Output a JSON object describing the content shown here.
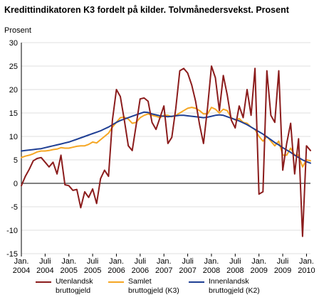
{
  "chart_data": {
    "type": "line",
    "title": "Kredittindikatoren K3 fordelt på kilder. Tolvmånedersvekst. Prosent",
    "ylabel": "Prosent",
    "xlabel": "",
    "ylim": [
      -15,
      30
    ],
    "yticks": [
      30,
      25,
      20,
      15,
      10,
      5,
      0,
      -5,
      -10,
      -15
    ],
    "grid": true,
    "legend_position": "bottom",
    "x_ticks": [
      {
        "line1": "Jan.",
        "line2": "2004"
      },
      {
        "line1": "Juli",
        "line2": "2004"
      },
      {
        "line1": "Jan.",
        "line2": "2005"
      },
      {
        "line1": "Juli",
        "line2": "2005"
      },
      {
        "line1": "Jan.",
        "line2": "2006"
      },
      {
        "line1": "Juli",
        "line2": "2006"
      },
      {
        "line1": "Jan.",
        "line2": "2007"
      },
      {
        "line1": "Juli",
        "line2": "2007"
      },
      {
        "line1": "Jan.",
        "line2": "2008"
      },
      {
        "line1": "Juli",
        "line2": "2008"
      },
      {
        "line1": "Jan.",
        "line2": "2009"
      },
      {
        "line1": "Juli",
        "line2": "2009"
      },
      {
        "line1": "Jan.",
        "line2": "2010"
      }
    ],
    "x": [
      "2004-01",
      "2004-02",
      "2004-03",
      "2004-04",
      "2004-05",
      "2004-06",
      "2004-07",
      "2004-08",
      "2004-09",
      "2004-10",
      "2004-11",
      "2004-12",
      "2005-01",
      "2005-02",
      "2005-03",
      "2005-04",
      "2005-05",
      "2005-06",
      "2005-07",
      "2005-08",
      "2005-09",
      "2005-10",
      "2005-11",
      "2005-12",
      "2006-01",
      "2006-02",
      "2006-03",
      "2006-04",
      "2006-05",
      "2006-06",
      "2006-07",
      "2006-08",
      "2006-09",
      "2006-10",
      "2006-11",
      "2006-12",
      "2007-01",
      "2007-02",
      "2007-03",
      "2007-04",
      "2007-05",
      "2007-06",
      "2007-07",
      "2007-08",
      "2007-09",
      "2007-10",
      "2007-11",
      "2007-12",
      "2008-01",
      "2008-02",
      "2008-03",
      "2008-04",
      "2008-05",
      "2008-06",
      "2008-07",
      "2008-08",
      "2008-09",
      "2008-10",
      "2008-11",
      "2008-12",
      "2009-01",
      "2009-02",
      "2009-03",
      "2009-04",
      "2009-05",
      "2009-06",
      "2009-07",
      "2009-08",
      "2009-09",
      "2009-10",
      "2009-11",
      "2009-12",
      "2010-01",
      "2010-02"
    ],
    "series": [
      {
        "name": "Utenlandsk bruttogjeld",
        "color": "#8b1c1c",
        "values": [
          -0.5,
          1.5,
          3.0,
          4.8,
          5.3,
          5.5,
          4.5,
          3.5,
          4.5,
          2.0,
          6.0,
          -0.3,
          -0.5,
          -1.5,
          -1.3,
          -5.2,
          -1.8,
          -3.0,
          -1.2,
          -4.3,
          1.0,
          2.8,
          1.5,
          13.5,
          20.0,
          18.5,
          13.5,
          8.0,
          7.0,
          12.5,
          18.0,
          18.2,
          17.5,
          13.0,
          11.5,
          14.0,
          16.5,
          8.5,
          9.8,
          16.0,
          24.0,
          24.5,
          23.5,
          21.0,
          17.5,
          12.5,
          8.5,
          16.0,
          25.0,
          22.5,
          15.5,
          23.0,
          18.8,
          13.5,
          11.8,
          16.5,
          14.0,
          20.0,
          14.5,
          24.5,
          -2.3,
          -1.8,
          24.0,
          14.5,
          13.0,
          24.0,
          2.8,
          8.5,
          12.8,
          2.0,
          9.5,
          -11.3,
          8.0,
          7.0
        ]
      },
      {
        "name": "Samlet bruttogjeld (K3)",
        "color": "#f5a623",
        "values": [
          5.5,
          5.8,
          6.0,
          6.3,
          6.7,
          6.9,
          6.9,
          7.0,
          7.2,
          7.3,
          7.6,
          7.5,
          7.5,
          7.7,
          7.9,
          8.0,
          8.0,
          8.3,
          8.8,
          8.6,
          9.3,
          10.0,
          10.7,
          12.0,
          13.0,
          14.0,
          14.1,
          13.7,
          12.8,
          13.0,
          14.0,
          14.5,
          14.8,
          14.5,
          14.3,
          14.0,
          14.5,
          14.5,
          14.2,
          14.5,
          15.0,
          15.5,
          16.0,
          16.2,
          16.0,
          15.5,
          14.8,
          14.8,
          16.2,
          15.8,
          15.0,
          15.8,
          15.5,
          14.0,
          13.5,
          13.8,
          13.0,
          12.8,
          12.0,
          11.5,
          10.0,
          9.0,
          10.0,
          9.0,
          8.0,
          9.0,
          6.0,
          6.0,
          7.5,
          6.0,
          6.0,
          3.5,
          5.0,
          4.8
        ]
      },
      {
        "name": "Innenlandsk bruttogjeld (K2)",
        "color": "#1f3f94",
        "values": [
          6.9,
          7.0,
          7.1,
          7.2,
          7.3,
          7.4,
          7.6,
          7.8,
          8.0,
          8.2,
          8.4,
          8.6,
          8.8,
          9.1,
          9.4,
          9.7,
          10.0,
          10.3,
          10.6,
          10.9,
          11.2,
          11.6,
          12.0,
          12.5,
          13.0,
          13.4,
          13.7,
          14.0,
          14.3,
          14.6,
          14.9,
          15.2,
          15.1,
          14.8,
          14.6,
          14.4,
          14.3,
          14.2,
          14.3,
          14.4,
          14.5,
          14.5,
          14.4,
          14.3,
          14.2,
          14.1,
          14.0,
          14.1,
          14.3,
          14.5,
          14.6,
          14.5,
          14.2,
          13.9,
          13.6,
          13.3,
          12.9,
          12.5,
          12.0,
          11.5,
          11.0,
          10.5,
          9.9,
          9.3,
          8.7,
          8.2,
          7.6,
          7.1,
          6.6,
          6.0,
          5.5,
          5.0,
          4.6,
          4.3
        ]
      }
    ],
    "legend": [
      {
        "line1": "Utenlandsk",
        "line2": "bruttogjeld"
      },
      {
        "line1": "Samlet",
        "line2": "bruttogjeld (K3)"
      },
      {
        "line1": "Innenlandsk",
        "line2": "bruttogjeld (K2)"
      }
    ]
  }
}
